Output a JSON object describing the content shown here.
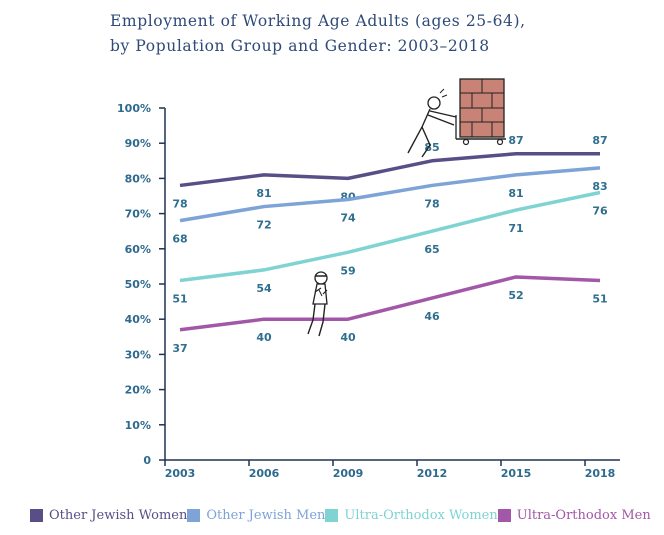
{
  "title_line1": "Employment of Working Age Adults (ages 25-64),",
  "title_line2": "by Population Group and Gender: 2003–2018",
  "chart_data": {
    "type": "line",
    "title": "Employment of Working Age Adults (ages 25-64), by Population Group and Gender: 2003–2018",
    "x": [
      "2003",
      "2006",
      "2009",
      "2012",
      "2015",
      "2018"
    ],
    "y_ticks": [
      "0",
      "10%",
      "20%",
      "30%",
      "40%",
      "50%",
      "60%",
      "70%",
      "80%",
      "90%",
      "100%"
    ],
    "ylim": [
      0,
      100
    ],
    "series": [
      {
        "name": "Other Jewish Women",
        "color": "#5a4e87",
        "values": [
          78,
          81,
          80,
          85,
          87,
          87
        ],
        "labels": [
          "78",
          "81",
          "80",
          "85",
          "87",
          "87"
        ],
        "label_pos": "below-above"
      },
      {
        "name": "Other Jewish Men",
        "color": "#7ea3d6",
        "values": [
          68,
          72,
          74,
          78,
          81,
          83
        ],
        "labels": [
          "68",
          "72",
          "74",
          "78",
          "81",
          "83"
        ]
      },
      {
        "name": "Ultra-Orthodox Women",
        "color": "#7fd3d3",
        "values": [
          51,
          54,
          59,
          65,
          71,
          76
        ],
        "labels": [
          "51",
          "54",
          "59",
          "65",
          "71",
          "76"
        ]
      },
      {
        "name": "Ultra-Orthodox Men",
        "color": "#a357a8",
        "values": [
          37,
          40,
          40,
          46,
          52,
          51
        ],
        "labels": [
          "37",
          "40",
          "40",
          "46",
          "52",
          "51"
        ]
      }
    ]
  },
  "illustrations": [
    "man-pushing-cart-icon",
    "sitting-man-icon"
  ],
  "colors": {
    "axis": "#1f3350",
    "tick_label": "#2e6a8e",
    "data_label": "#2f6f8f"
  }
}
